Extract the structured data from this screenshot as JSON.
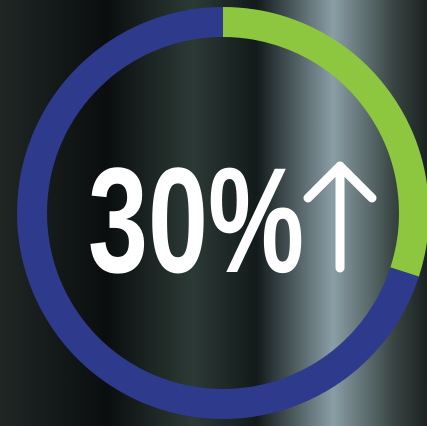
{
  "chart_data": {
    "type": "donut",
    "values": [
      30,
      70
    ],
    "colors": [
      "#8dc63f",
      "#2e3a8c"
    ],
    "center_label": "30%"
  }
}
